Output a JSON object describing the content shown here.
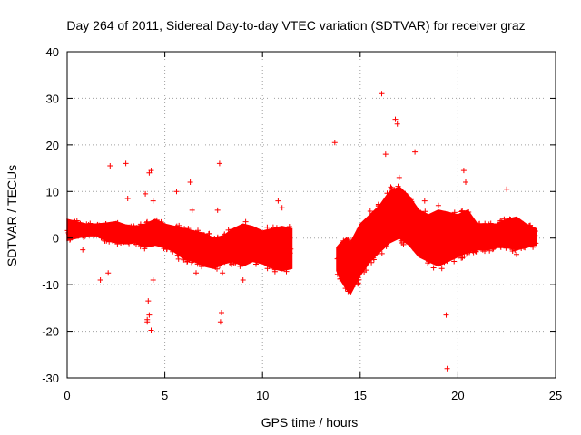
{
  "chart_data": {
    "type": "scatter",
    "title": "Day 264 of 2011, Sidereal Day-to-day VTEC variation (SDTVAR) for receiver graz",
    "xlabel": "GPS time / hours",
    "ylabel": "SDTVAR / TECUs",
    "xlim": [
      0,
      25
    ],
    "ylim": [
      -30,
      40
    ],
    "xticks": [
      0,
      5,
      10,
      15,
      20,
      25
    ],
    "yticks": [
      -30,
      -20,
      -10,
      0,
      10,
      20,
      30,
      40
    ],
    "xtick_labels": [
      "0",
      "5",
      "10",
      "15",
      "20",
      "25"
    ],
    "ytick_labels": [
      "-30",
      "-20",
      "-10",
      "0",
      "10",
      "20",
      "30",
      "40"
    ],
    "grid": true,
    "marker": "+",
    "series_color": "#ff0000",
    "band_series": {
      "name": "SDTVAR dense band (envelope per segment, hours / TECU)",
      "segments": [
        {
          "x": [
            0.0,
            0.5,
            1.0,
            1.5,
            2.0,
            2.5,
            3.0,
            3.5,
            4.0,
            4.5,
            5.0,
            5.5,
            6.0,
            6.5,
            7.0,
            7.5,
            8.0,
            8.5,
            9.0,
            9.5,
            10.0,
            10.5,
            11.0,
            11.5
          ],
          "upper": [
            4.0,
            3.5,
            3.0,
            3.0,
            3.2,
            3.5,
            2.8,
            2.5,
            3.0,
            4.0,
            3.0,
            2.5,
            2.0,
            1.5,
            1.0,
            0.0,
            0.5,
            2.0,
            3.0,
            2.5,
            1.5,
            2.0,
            2.5,
            2.0
          ],
          "lower": [
            -0.5,
            0.0,
            0.5,
            0.5,
            -0.5,
            -1.0,
            -1.2,
            -1.0,
            -2.0,
            -1.5,
            -2.0,
            -3.0,
            -4.5,
            -5.0,
            -6.0,
            -6.5,
            -5.5,
            -5.0,
            -6.0,
            -5.0,
            -5.5,
            -6.5,
            -7.0,
            -6.5
          ]
        },
        {
          "x": [
            13.8,
            14.0,
            14.3,
            14.5,
            15.0,
            15.5,
            16.0,
            16.5,
            17.0,
            17.5,
            18.0,
            18.5,
            19.0,
            19.5,
            20.0,
            20.5,
            21.0,
            21.5,
            22.0,
            22.5,
            23.0,
            23.5,
            24.0
          ],
          "upper": [
            -2.0,
            -1.0,
            0.0,
            -1.0,
            3.0,
            5.0,
            7.0,
            10.0,
            11.0,
            9.0,
            6.0,
            5.0,
            6.0,
            5.5,
            5.0,
            6.0,
            3.0,
            3.0,
            3.0,
            4.0,
            4.5,
            3.0,
            2.0
          ],
          "lower": [
            -7.0,
            -9.0,
            -11.0,
            -12.0,
            -8.0,
            -5.0,
            -3.0,
            -1.0,
            0.0,
            -1.5,
            -4.0,
            -5.0,
            -6.0,
            -5.0,
            -4.0,
            -3.0,
            -2.5,
            -2.5,
            -2.0,
            -2.0,
            -2.5,
            -2.0,
            -1.5
          ]
        }
      ]
    },
    "outlier_points": {
      "name": "SDTVAR isolated values (hours, TECU)",
      "x": [
        0.8,
        1.7,
        2.2,
        2.1,
        3.0,
        3.1,
        4.0,
        4.2,
        4.3,
        4.4,
        4.1,
        4.2,
        4.3,
        4.1,
        4.15,
        4.4,
        5.6,
        5.7,
        6.3,
        6.4,
        6.6,
        7.8,
        7.9,
        7.85,
        7.95,
        7.7,
        7.6,
        9.0,
        9.2,
        10.8,
        11.0,
        10.9,
        13.7,
        16.1,
        16.3,
        16.8,
        16.9,
        17.0,
        17.8,
        18.3,
        19.4,
        19.45,
        19.0,
        20.3,
        20.4,
        22.5,
        22.7,
        23.0
      ],
      "y": [
        -2.5,
        -9.0,
        15.5,
        -7.5,
        16.0,
        8.5,
        9.5,
        14.0,
        14.5,
        8.0,
        -17.5,
        -16.5,
        -19.8,
        -18.0,
        -13.5,
        -9.0,
        10.0,
        -4.5,
        12.0,
        6.0,
        -7.5,
        16.0,
        -16.0,
        -18.0,
        -7.5,
        6.0,
        -3.0,
        -9.0,
        -2.0,
        8.0,
        6.5,
        -5.0,
        20.5,
        31.0,
        18.0,
        25.5,
        24.5,
        13.0,
        18.5,
        8.0,
        -16.5,
        -28.0,
        7.0,
        14.5,
        12.0,
        10.5,
        4.0,
        -3.5
      ]
    }
  }
}
